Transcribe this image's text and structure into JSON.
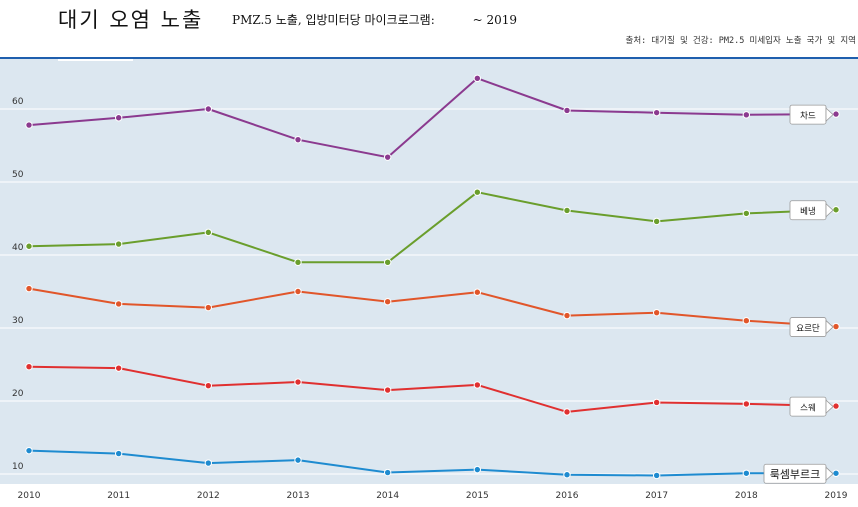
{
  "header": {
    "title": "대기 오염 노출",
    "subtitle": "PMZ.5 노출, 입방미터당 마이크로그램:",
    "subtitle_range": "~ 2019",
    "source": "출처: 대기질 및 건강: PM2.5 미세입자 노출 국가 및 지역"
  },
  "colors": {
    "plot_bg": "#dce7f0",
    "grid": "#ffffff",
    "accent_rule": "#1f5fae"
  },
  "chart_data": {
    "type": "line",
    "title": "대기 오염 노출",
    "x": [
      2010,
      2011,
      2012,
      2013,
      2014,
      2015,
      2016,
      2017,
      2018,
      2019
    ],
    "xlim": [
      2010,
      2019
    ],
    "ylim": [
      8,
      68
    ],
    "yticks": [
      10,
      20,
      30,
      40,
      50,
      60
    ],
    "grid": true,
    "legend": "inline-right",
    "series": [
      {
        "name": "차드",
        "color": "#8b3a8f",
        "values": [
          57.8,
          58.8,
          60.0,
          55.8,
          53.4,
          64.2,
          59.8,
          59.5,
          59.2,
          59.3
        ]
      },
      {
        "name": "베냉",
        "color": "#6a9e2c",
        "values": [
          41.2,
          41.5,
          43.1,
          39.0,
          39.0,
          48.6,
          46.1,
          44.6,
          45.7,
          46.2
        ]
      },
      {
        "name": "요르단",
        "color": "#e1562a",
        "values": [
          35.4,
          33.3,
          32.8,
          35.0,
          33.6,
          34.9,
          31.7,
          32.1,
          31.0,
          30.2
        ]
      },
      {
        "name": "스웨",
        "color": "#e03030",
        "values": [
          24.7,
          24.5,
          22.1,
          22.6,
          21.5,
          22.2,
          18.5,
          19.8,
          19.6,
          19.3
        ]
      },
      {
        "name": "룩셈부르크",
        "color": "#1e8bd0",
        "values": [
          13.2,
          12.8,
          11.5,
          11.9,
          10.2,
          10.6,
          9.9,
          9.8,
          10.1,
          10.1
        ]
      }
    ]
  }
}
